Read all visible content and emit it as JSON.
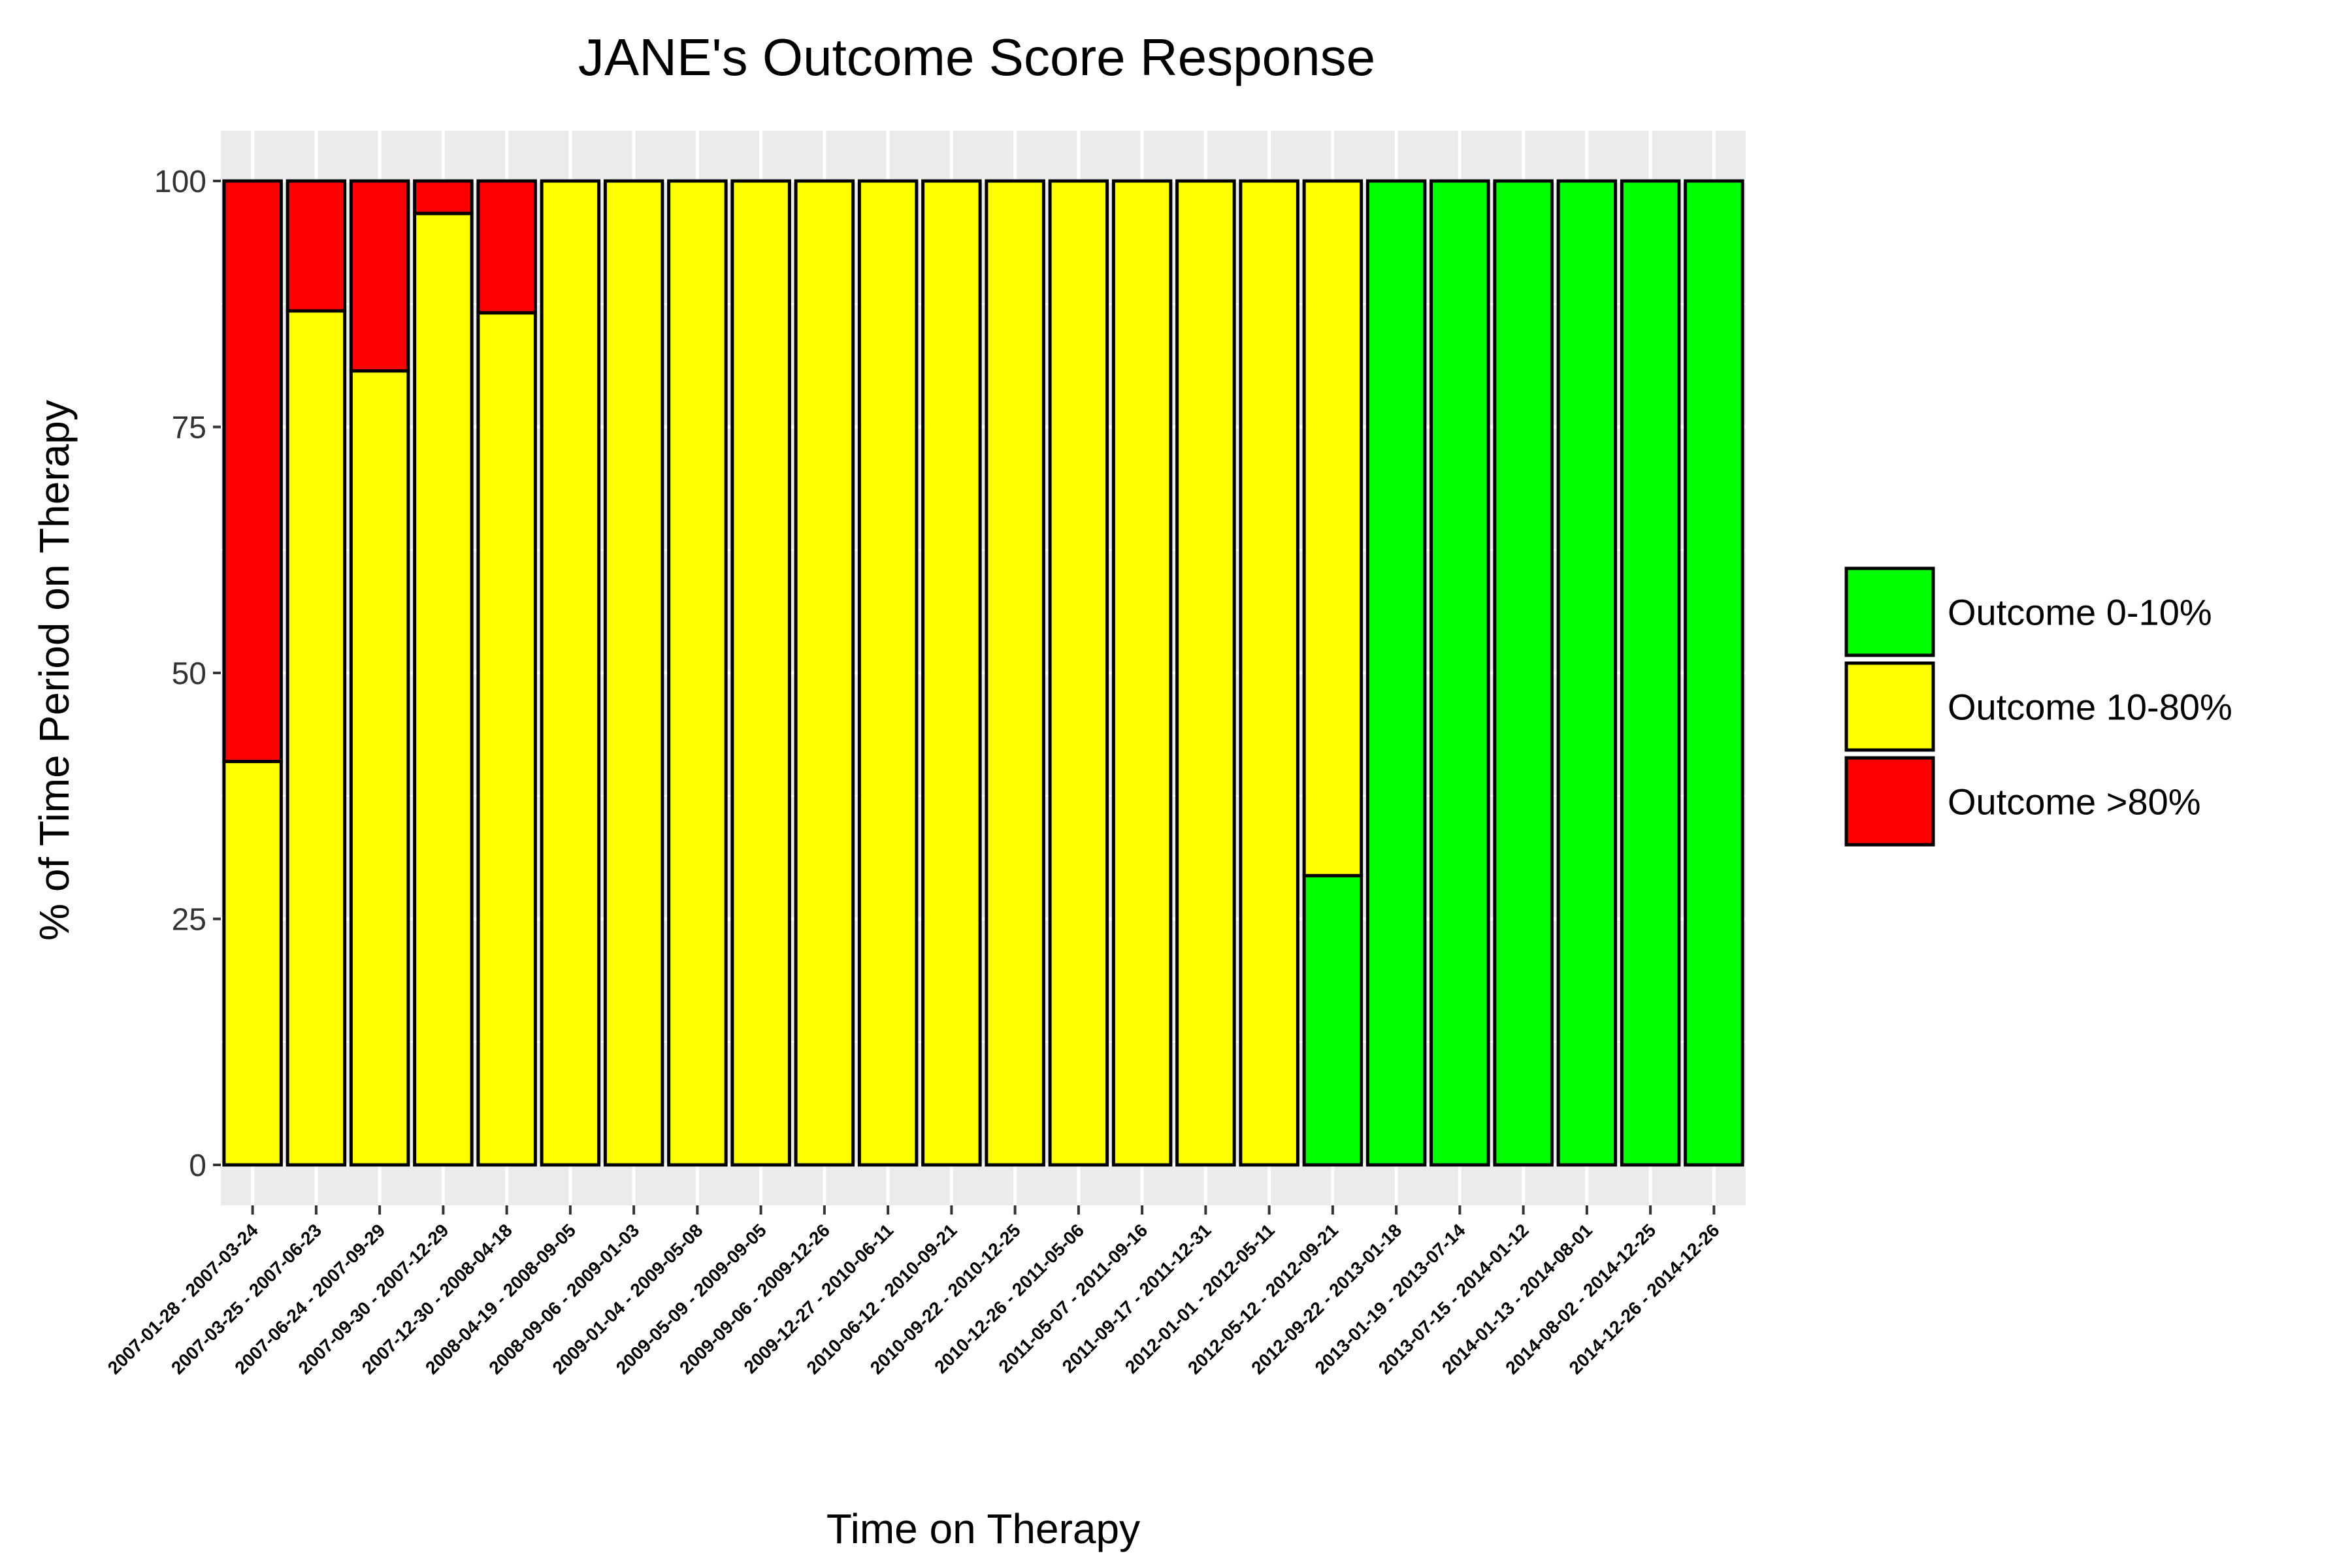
{
  "chart_data": {
    "type": "bar",
    "stacked": true,
    "title": "JANE's Outcome Score Response",
    "xlabel": "Time on Therapy",
    "ylabel": "% of Time Period on Therapy",
    "ylim": [
      0,
      100
    ],
    "y_ticks": [
      0,
      25,
      50,
      75,
      100
    ],
    "grid": true,
    "legend_position": "right",
    "categories": [
      "2007-01-28 - 2007-03-24",
      "2007-03-25 - 2007-06-23",
      "2007-06-24 - 2007-09-29",
      "2007-09-30 - 2007-12-29",
      "2007-12-30 - 2008-04-18",
      "2008-04-19 - 2008-09-05",
      "2008-09-06 - 2009-01-03",
      "2009-01-04 - 2009-05-08",
      "2009-05-09 - 2009-09-05",
      "2009-09-06 - 2009-12-26",
      "2009-12-27 - 2010-06-11",
      "2010-06-12 - 2010-09-21",
      "2010-09-22 - 2010-12-25",
      "2010-12-26 - 2011-05-06",
      "2011-05-07 - 2011-09-16",
      "2011-09-17 - 2011-12-31",
      "2012-01-01 - 2012-05-11",
      "2012-05-12 - 2012-09-21",
      "2012-09-22 - 2013-01-18",
      "2013-01-19 - 2013-07-14",
      "2013-07-15 - 2014-01-12",
      "2014-01-13 - 2014-08-01",
      "2014-08-02 - 2014-12-25",
      "2014-12-26 - 2014-12-26"
    ],
    "series": [
      {
        "name": "Outcome 0-10%",
        "color": "#00FF00",
        "values": [
          0,
          0,
          0,
          0,
          0,
          0,
          0,
          0,
          0,
          0,
          0,
          0,
          0,
          0,
          0,
          0,
          0,
          29.4,
          100,
          100,
          100,
          100,
          100,
          100
        ]
      },
      {
        "name": "Outcome 10-80%",
        "color": "#FFFF00",
        "values": [
          41,
          86.8,
          80.7,
          96.7,
          86.6,
          100,
          100,
          100,
          100,
          100,
          100,
          100,
          100,
          100,
          100,
          100,
          100,
          70.6,
          0,
          0,
          0,
          0,
          0,
          0
        ]
      },
      {
        "name": "Outcome >80%",
        "color": "#FF0000",
        "values": [
          59,
          13.2,
          19.3,
          3.3,
          13.4,
          0,
          0,
          0,
          0,
          0,
          0,
          0,
          0,
          0,
          0,
          0,
          0,
          0,
          0,
          0,
          0,
          0,
          0,
          0
        ]
      }
    ]
  }
}
